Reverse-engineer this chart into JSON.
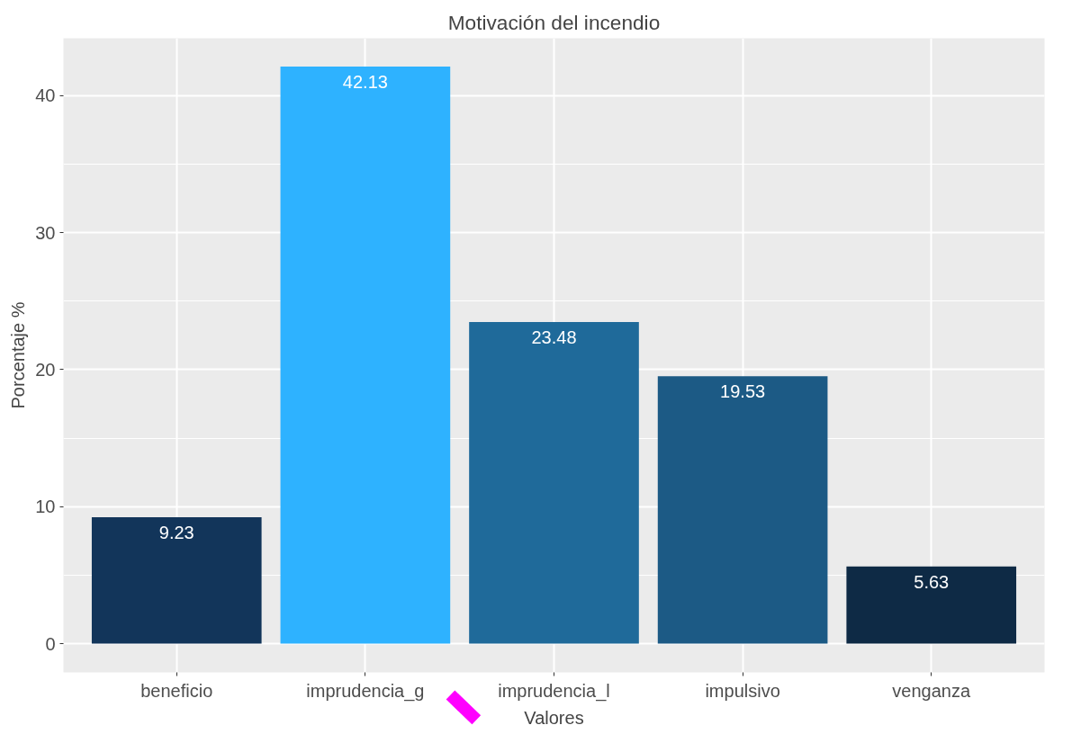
{
  "chart_data": {
    "type": "bar",
    "title": "Motivación del incendio",
    "xlabel": "Valores",
    "ylabel": "Porcentaje %",
    "categories": [
      "beneficio",
      "imprudencia_g",
      "imprudencia_l",
      "impulsivo",
      "venganza"
    ],
    "values": [
      9.23,
      42.13,
      23.48,
      19.53,
      5.63
    ],
    "colors": [
      "#12355a",
      "#2eb2ff",
      "#1f6a9a",
      "#1c5a85",
      "#0e2a45"
    ],
    "ylim": [
      -2.1,
      44.2
    ],
    "yticks": [
      0,
      10,
      20,
      30,
      40
    ],
    "grid": true,
    "data_labels": true
  }
}
